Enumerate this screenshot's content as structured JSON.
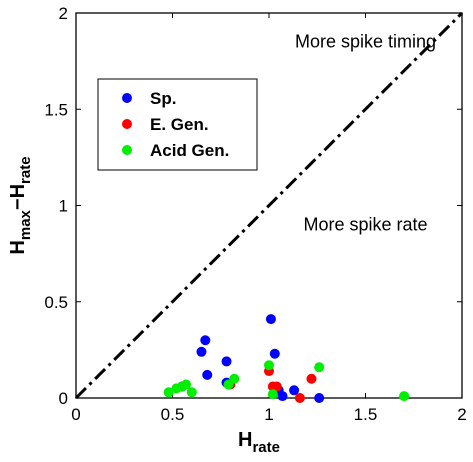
{
  "chart_data": {
    "type": "scatter",
    "title": "",
    "xlabel": {
      "main": "H",
      "sub": "rate"
    },
    "ylabel": {
      "main1": "H",
      "sub1": "max",
      "dash": "−",
      "main2": "H",
      "sub2": "rate"
    },
    "xlim": [
      0,
      2
    ],
    "ylim": [
      0,
      2
    ],
    "xticks": [
      "0",
      "0.5",
      "1",
      "1.5",
      "2"
    ],
    "xtick_values": [
      0,
      0.5,
      1,
      1.5,
      2
    ],
    "yticks": [
      "0",
      "0.5",
      "1",
      "1.5",
      "2"
    ],
    "ytick_values": [
      0,
      0.5,
      1,
      1.5,
      2
    ],
    "grid": false,
    "legend_placement": "upper-left",
    "reference_line": {
      "style": "dash-dot",
      "color": "#000000",
      "x": [
        0,
        2
      ],
      "y": [
        0,
        2
      ]
    },
    "annotations": [
      {
        "text": "More spike timing",
        "x": 1.5,
        "y": 1.82
      },
      {
        "text": "More spike rate",
        "x": 1.5,
        "y": 0.87
      }
    ],
    "series": [
      {
        "name": "Sp.",
        "color": "#0000ff",
        "points": [
          [
            0.55,
            0.06
          ],
          [
            0.65,
            0.24
          ],
          [
            0.67,
            0.3
          ],
          [
            0.68,
            0.12
          ],
          [
            0.78,
            0.19
          ],
          [
            0.78,
            0.08
          ],
          [
            1.01,
            0.41
          ],
          [
            1.03,
            0.23
          ],
          [
            1.05,
            0.04
          ],
          [
            1.07,
            0.01
          ],
          [
            1.13,
            0.04
          ],
          [
            1.26,
            0.0
          ]
        ]
      },
      {
        "name": "E. Gen.",
        "color": "#ff0000",
        "points": [
          [
            1.0,
            0.14
          ],
          [
            1.02,
            0.06
          ],
          [
            1.04,
            0.06
          ],
          [
            1.16,
            0.0
          ],
          [
            1.22,
            0.1
          ],
          [
            0.8,
            0.07
          ]
        ]
      },
      {
        "name": "Acid Gen.",
        "color": "#00ee00",
        "points": [
          [
            0.48,
            0.03
          ],
          [
            0.52,
            0.05
          ],
          [
            0.55,
            0.06
          ],
          [
            0.57,
            0.07
          ],
          [
            0.6,
            0.03
          ],
          [
            0.79,
            0.07
          ],
          [
            0.82,
            0.1
          ],
          [
            1.0,
            0.17
          ],
          [
            1.02,
            0.02
          ],
          [
            1.26,
            0.16
          ],
          [
            1.7,
            0.01
          ]
        ]
      }
    ]
  }
}
